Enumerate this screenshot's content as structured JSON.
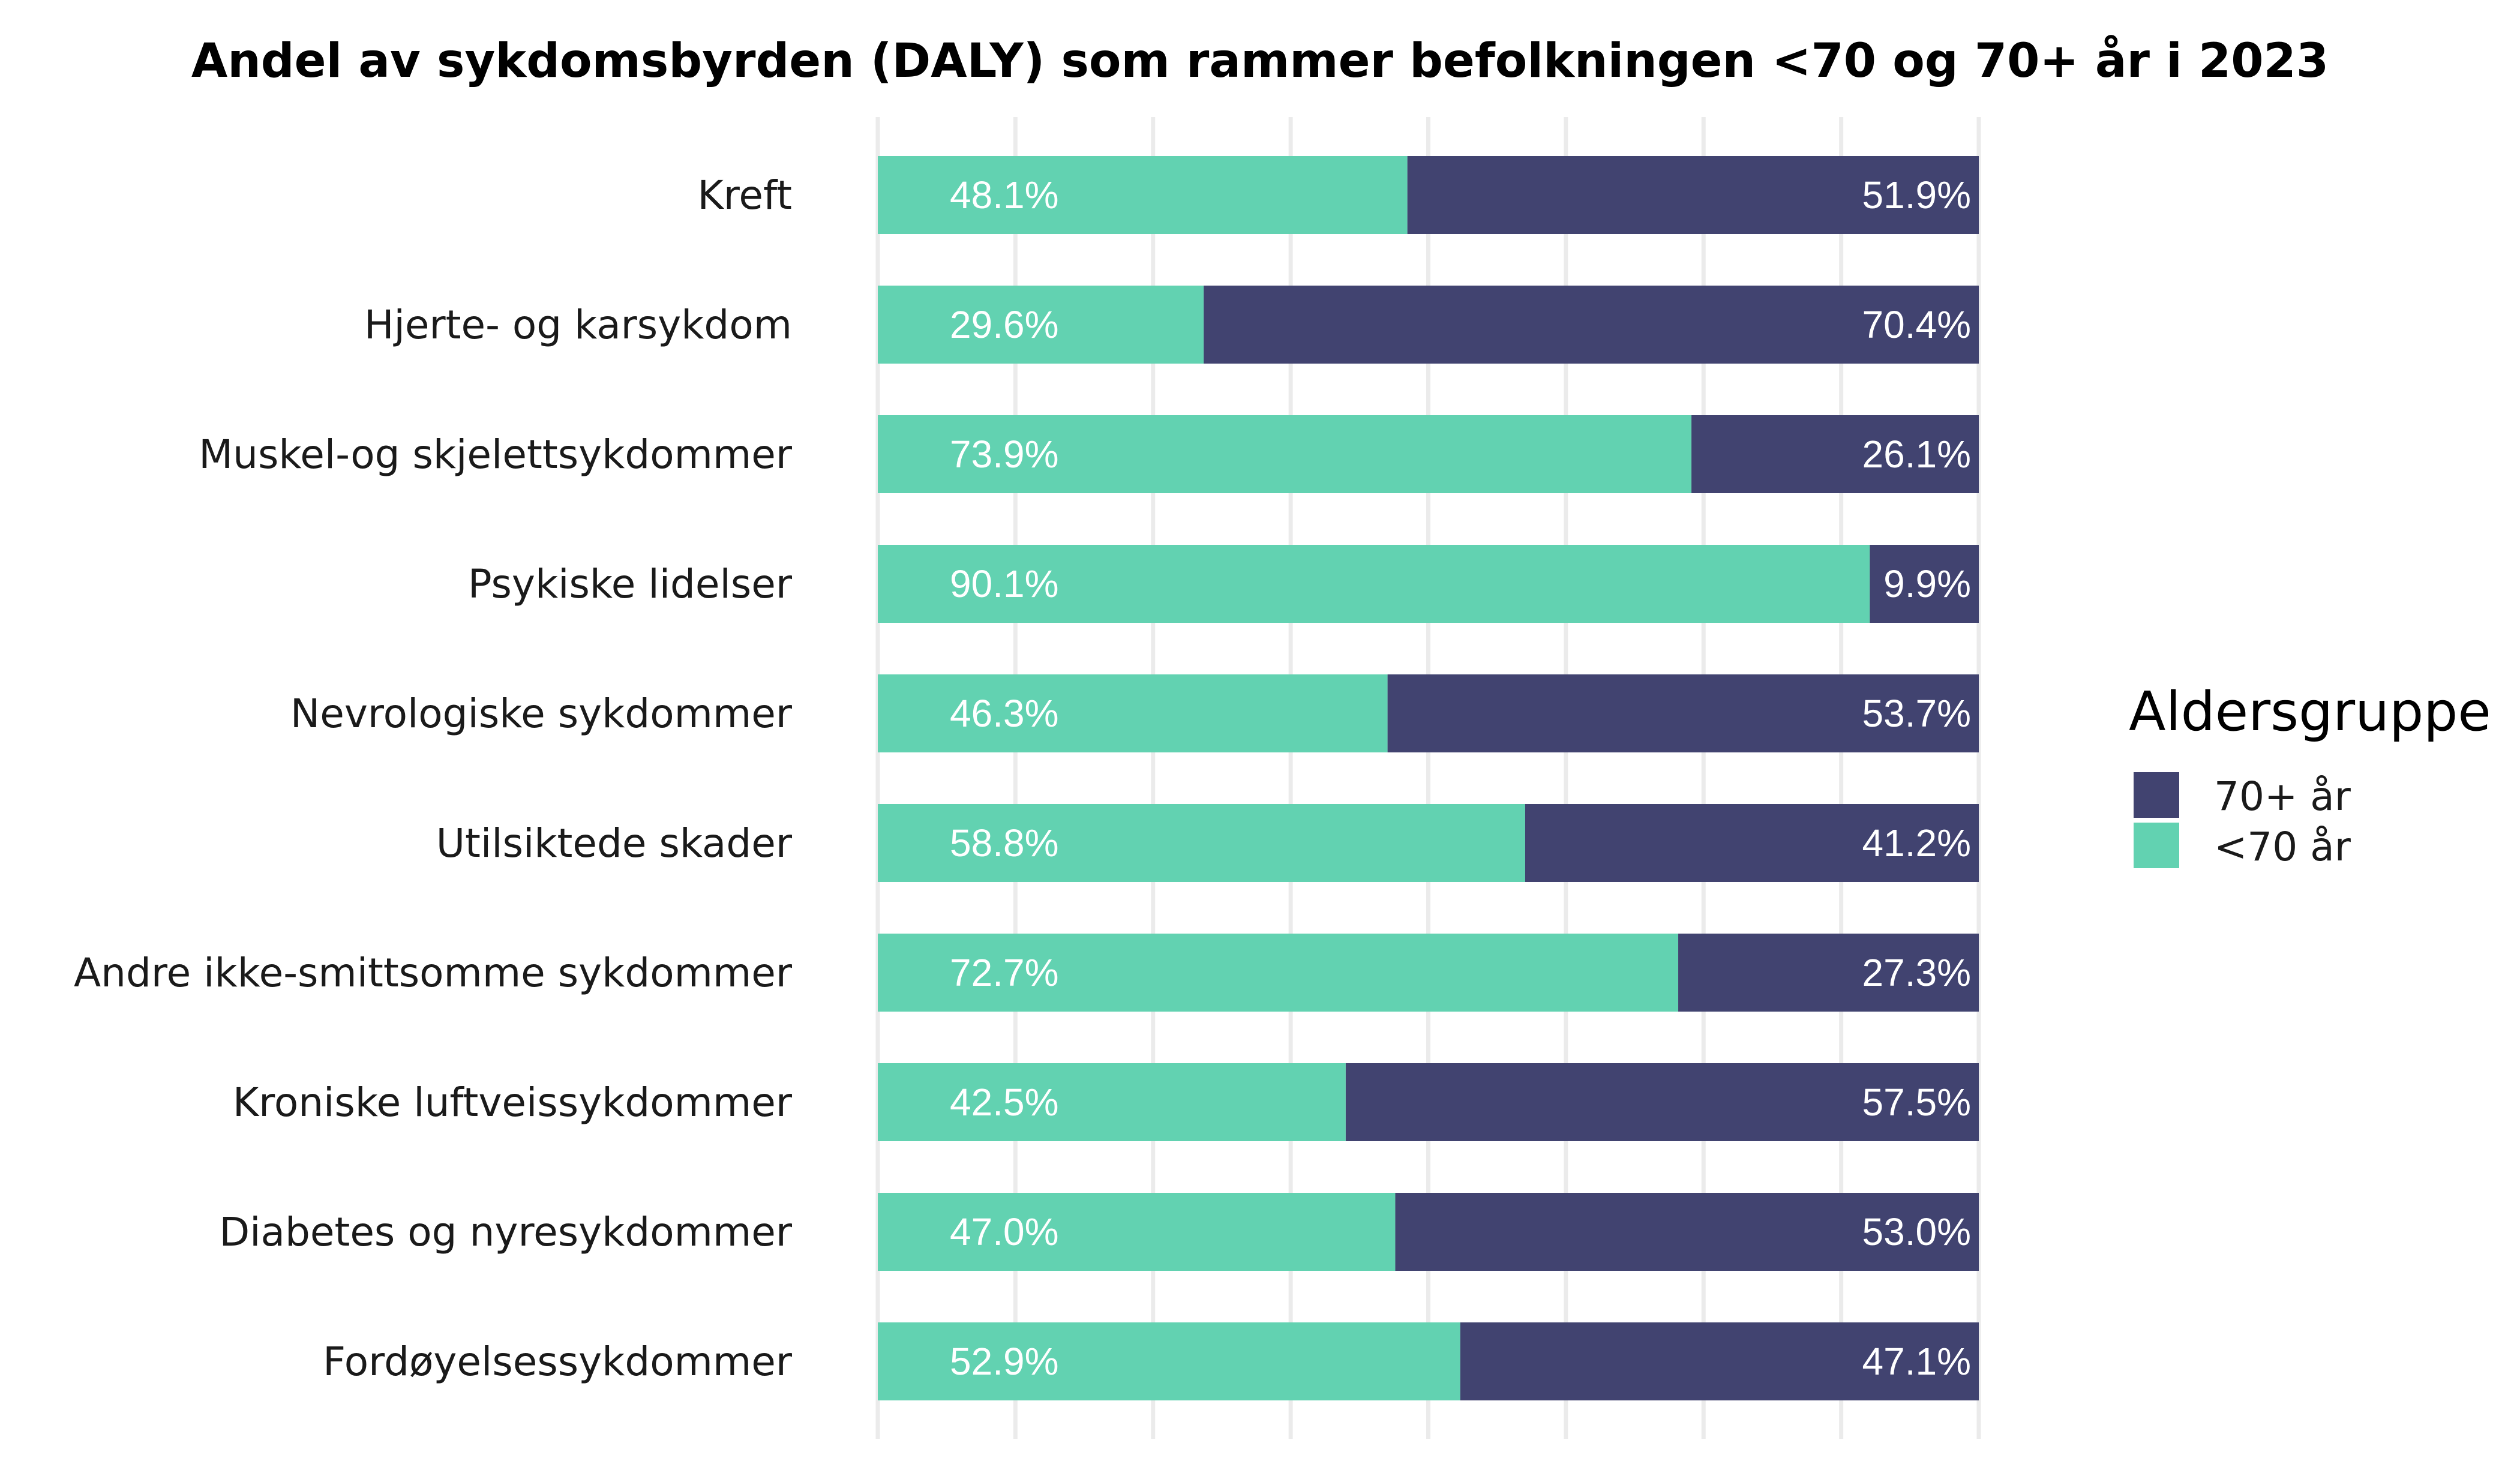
{
  "chart_data": {
    "type": "bar",
    "orientation": "horizontal-stacked-percent",
    "title": "Andel av sykdomsbyrden (DALY) som rammer befolkningen <70 og 70+ år i 2023",
    "xlabel": "",
    "ylabel": "",
    "xlim": [
      0,
      100
    ],
    "grid": true,
    "categories": [
      "Kreft",
      "Hjerte- og karsykdom",
      "Muskel-og skjelettsykdommer",
      "Psykiske lidelser",
      "Nevrologiske sykdommer",
      "Utilsiktede skader",
      "Andre ikke-smittsomme sykdommer",
      "Kroniske luftveissykdommer",
      "Diabetes og nyresykdommer",
      "Fordøyelsessykdommer"
    ],
    "series": [
      {
        "name": "<70 år",
        "color": "#62D2B1",
        "values": [
          48.1,
          29.6,
          73.9,
          90.1,
          46.3,
          58.8,
          72.7,
          42.5,
          47.0,
          52.9
        ],
        "labels": [
          "48.1%",
          "29.6%",
          "73.9%",
          "90.1%",
          "46.3%",
          "58.8%",
          "72.7%",
          "42.5%",
          "47.0%",
          "52.9%"
        ]
      },
      {
        "name": "70+ år",
        "color": "#414370",
        "values": [
          51.9,
          70.4,
          26.1,
          9.9,
          53.7,
          41.2,
          27.3,
          57.5,
          53.0,
          47.1
        ],
        "labels": [
          "51.9%",
          "70.4%",
          "26.1%",
          "9.9%",
          "53.7%",
          "41.2%",
          "27.3%",
          "57.5%",
          "53.0%",
          "47.1%"
        ]
      }
    ],
    "legend": {
      "title": "Aldersgruppe",
      "position": "right",
      "entries": [
        "70+ år",
        "<70 år"
      ]
    }
  }
}
